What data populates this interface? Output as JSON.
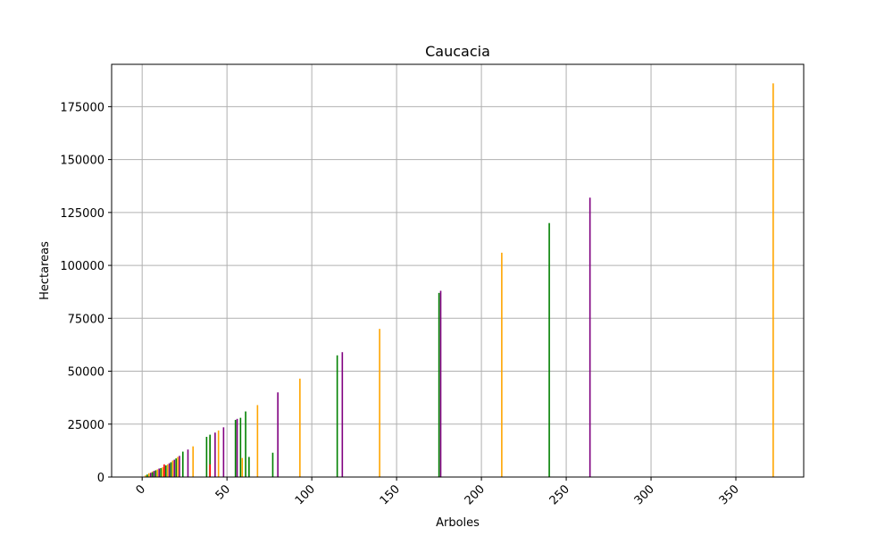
{
  "chart_data": {
    "type": "bar",
    "title": "Caucacia",
    "xlabel": "Arboles",
    "ylabel": "Hectareas",
    "xlim": [
      -18,
      390
    ],
    "ylim": [
      0,
      195000
    ],
    "x_ticks": [
      "0",
      "50",
      "100",
      "150",
      "200",
      "250",
      "300",
      "350"
    ],
    "y_ticks": [
      "0",
      "25000",
      "50000",
      "75000",
      "100000",
      "125000",
      "150000",
      "175000"
    ],
    "grid": true,
    "series": [
      {
        "color": "#ffa500",
        "points": [
          {
            "x": 2,
            "y": 800
          },
          {
            "x": 4,
            "y": 1800
          },
          {
            "x": 6,
            "y": 2600
          },
          {
            "x": 9,
            "y": 3600
          },
          {
            "x": 12,
            "y": 4600
          },
          {
            "x": 15,
            "y": 6000
          },
          {
            "x": 18,
            "y": 7800
          },
          {
            "x": 21,
            "y": 9500
          },
          {
            "x": 30,
            "y": 14500
          },
          {
            "x": 40,
            "y": 19000
          },
          {
            "x": 45,
            "y": 22000
          },
          {
            "x": 59,
            "y": 9000
          },
          {
            "x": 68,
            "y": 34000
          },
          {
            "x": 93,
            "y": 46500
          },
          {
            "x": 140,
            "y": 70000
          },
          {
            "x": 212,
            "y": 106000
          },
          {
            "x": 372,
            "y": 186000
          }
        ]
      },
      {
        "color": "#008000",
        "points": [
          {
            "x": 3,
            "y": 1200
          },
          {
            "x": 6,
            "y": 2200
          },
          {
            "x": 8,
            "y": 3200
          },
          {
            "x": 11,
            "y": 4200
          },
          {
            "x": 14,
            "y": 5500
          },
          {
            "x": 17,
            "y": 7000
          },
          {
            "x": 20,
            "y": 8800
          },
          {
            "x": 24,
            "y": 12000
          },
          {
            "x": 38,
            "y": 19000
          },
          {
            "x": 40,
            "y": 20000
          },
          {
            "x": 55,
            "y": 27000
          },
          {
            "x": 58,
            "y": 28000
          },
          {
            "x": 61,
            "y": 31000
          },
          {
            "x": 63,
            "y": 9500
          },
          {
            "x": 77,
            "y": 11500
          },
          {
            "x": 115,
            "y": 57500
          },
          {
            "x": 175,
            "y": 87000
          },
          {
            "x": 240,
            "y": 120000
          }
        ]
      },
      {
        "color": "#800080",
        "points": [
          {
            "x": 5,
            "y": 2000
          },
          {
            "x": 7,
            "y": 2900
          },
          {
            "x": 10,
            "y": 4000
          },
          {
            "x": 13,
            "y": 5000
          },
          {
            "x": 16,
            "y": 6500
          },
          {
            "x": 19,
            "y": 8200
          },
          {
            "x": 22,
            "y": 10000
          },
          {
            "x": 27,
            "y": 13000
          },
          {
            "x": 43,
            "y": 21000
          },
          {
            "x": 48,
            "y": 23500
          },
          {
            "x": 56,
            "y": 27500
          },
          {
            "x": 80,
            "y": 40000
          },
          {
            "x": 118,
            "y": 59000
          },
          {
            "x": 176,
            "y": 88000
          },
          {
            "x": 264,
            "y": 132000
          }
        ]
      },
      {
        "color": "#ff0000",
        "points": [
          {
            "x": 13,
            "y": 6000
          },
          {
            "x": 40,
            "y": 6000
          }
        ]
      }
    ]
  }
}
